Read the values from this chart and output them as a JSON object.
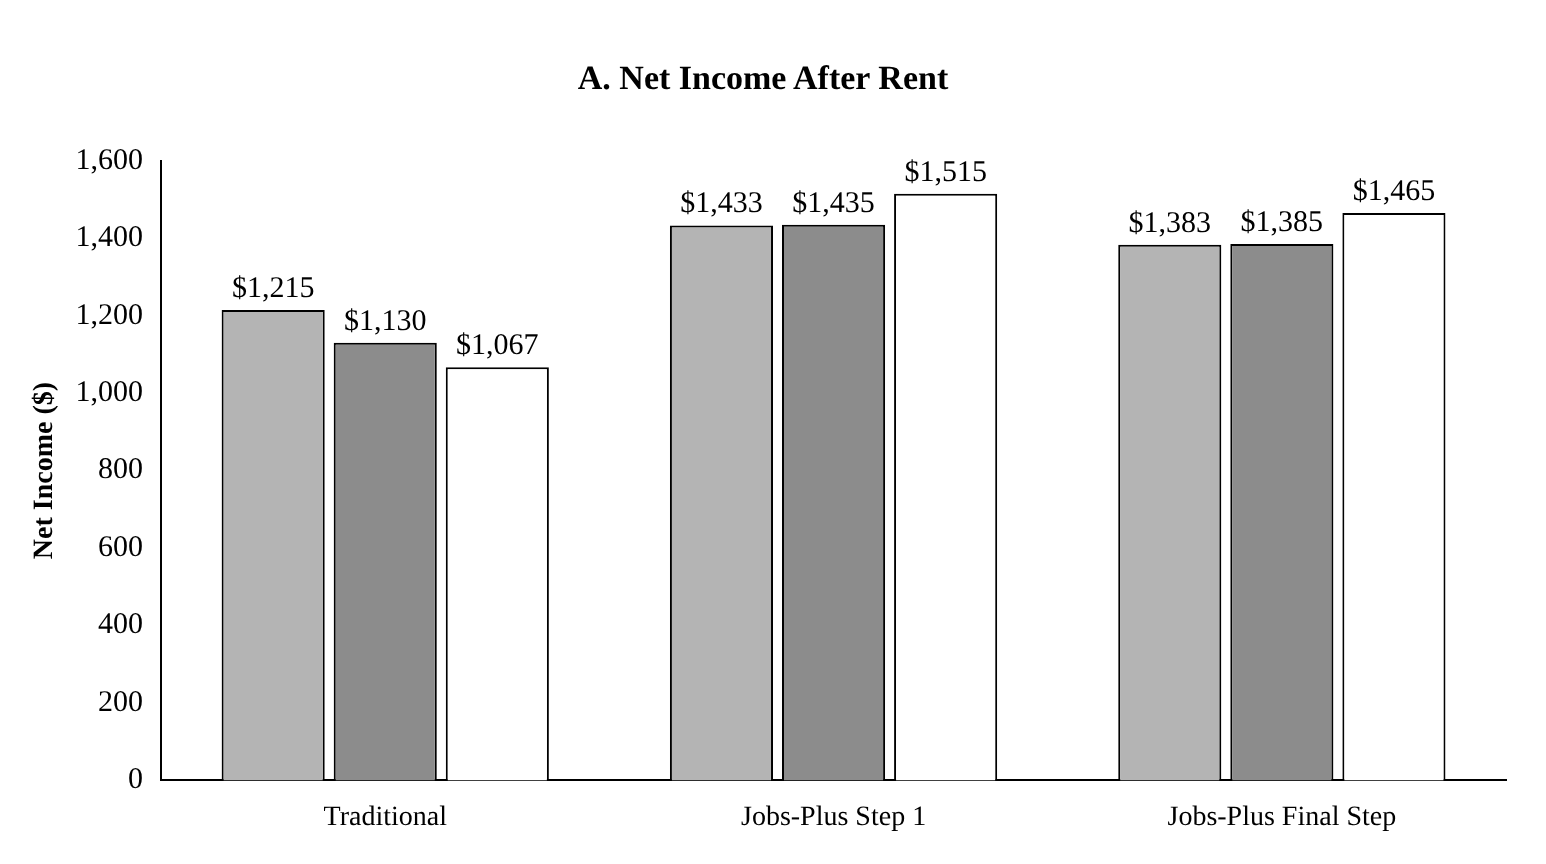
{
  "chart_data": {
    "type": "bar",
    "title": "A. Net Income After Rent",
    "ylabel": "Net Income ($)",
    "categories": [
      "Traditional",
      "Jobs-Plus Step 1",
      "Jobs-Plus Final Step"
    ],
    "series": [
      {
        "color": "#b4b4b4",
        "values": [
          1215,
          1433,
          1383
        ],
        "value_labels": [
          "$1,215",
          "$1,433",
          "$1,383"
        ]
      },
      {
        "color": "#8c8c8c",
        "values": [
          1130,
          1435,
          1385
        ],
        "value_labels": [
          "$1,130",
          "$1,435",
          "$1,385"
        ]
      },
      {
        "color": "#ffffff",
        "values": [
          1067,
          1515,
          1465
        ],
        "value_labels": [
          "$1,067",
          "$1,515",
          "$1,465"
        ]
      }
    ],
    "ylim": [
      0,
      1600
    ],
    "yticks": [
      0,
      200,
      400,
      600,
      800,
      {
        "value": 1000,
        "label": "1,000"
      },
      {
        "value": 1200,
        "label": "1,200"
      },
      {
        "value": 1400,
        "label": "1,400"
      },
      {
        "value": 1600,
        "label": "1,600"
      }
    ],
    "grid": false,
    "legend": false
  }
}
